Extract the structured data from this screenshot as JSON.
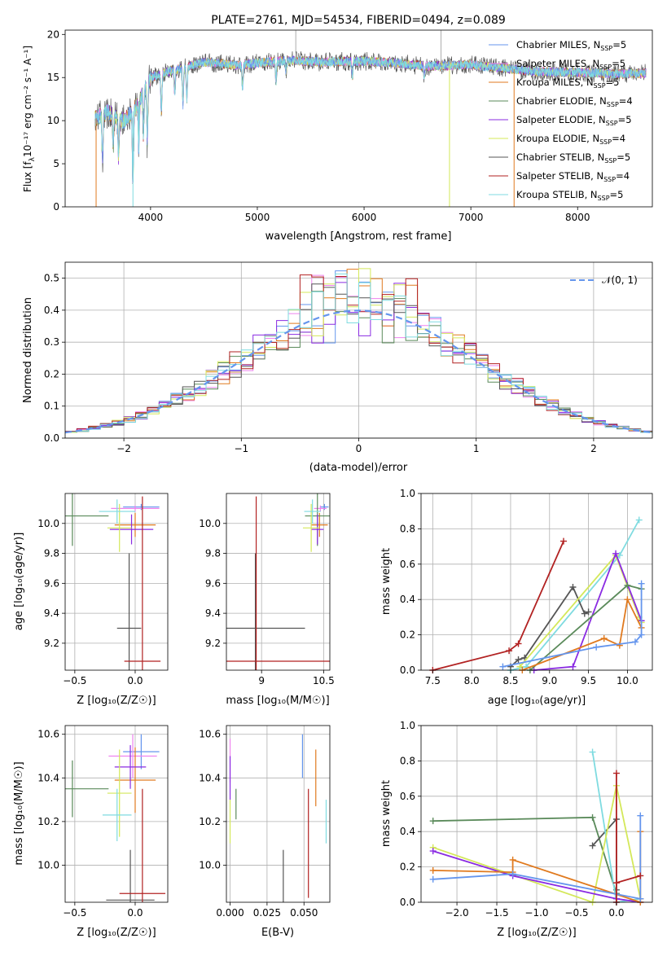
{
  "colors": {
    "chabrier_miles": "#6495ed",
    "salpeter_miles": "#ee82ee",
    "kroupa_miles": "#e07a1f",
    "chabrier_elodie": "#5a8a5a",
    "salpeter_elodie": "#8a2be2",
    "kroupa_elodie": "#d4e85a",
    "chabrier_stelib": "#555555",
    "salpeter_stelib": "#b22222",
    "kroupa_stelib": "#7fdbe0"
  },
  "chart_data": [
    {
      "id": "spectrum",
      "type": "line",
      "title": "PLATE=2761, MJD=54534, FIBERID=0494, z=0.089",
      "xlabel": "wavelength [Angstrom, rest frame]",
      "ylabel_prefix": "Flux [f",
      "ylabel_suffix": "10⁻¹⁷ erg cm⁻² s⁻¹ A⁻¹]",
      "xlim": [
        3200,
        8700
      ],
      "ylim": [
        0,
        20.5
      ],
      "xticks": [
        "4000",
        "5000",
        "6000",
        "7000",
        "8000"
      ],
      "yticks": [
        "0",
        "5",
        "10",
        "15",
        "20"
      ],
      "legend": [
        {
          "label": "Chabrier MILES, N",
          "n": "=5",
          "color_key": "chabrier_miles"
        },
        {
          "label": "Salpeter MILES, N",
          "n": "=5",
          "color_key": "salpeter_miles"
        },
        {
          "label": "Kroupa MILES, N",
          "n": "=5",
          "color_key": "kroupa_miles"
        },
        {
          "label": "Chabrier ELODIE, N",
          "n": "=4",
          "color_key": "chabrier_elodie"
        },
        {
          "label": "Salpeter ELODIE, N",
          "n": "=5",
          "color_key": "salpeter_elodie"
        },
        {
          "label": "Kroupa ELODIE, N",
          "n": "=4",
          "color_key": "kroupa_elodie"
        },
        {
          "label": "Chabrier STELIB, N",
          "n": "=5",
          "color_key": "chabrier_stelib"
        },
        {
          "label": "Salpeter STELIB, N",
          "n": "=4",
          "color_key": "salpeter_stelib"
        },
        {
          "label": "Kroupa STELIB, N",
          "n": "=5",
          "color_key": "kroupa_stelib"
        }
      ],
      "legend_subscript": "SSP",
      "continuum": [
        [
          3480,
          10.2
        ],
        [
          3600,
          11.0
        ],
        [
          3750,
          10.0
        ],
        [
          3850,
          11.3
        ],
        [
          4000,
          15.0
        ],
        [
          4200,
          15.8
        ],
        [
          4500,
          16.8
        ],
        [
          4800,
          16.4
        ],
        [
          5000,
          16.7
        ],
        [
          5300,
          17.0
        ],
        [
          5600,
          16.8
        ],
        [
          6000,
          16.9
        ],
        [
          6300,
          16.7
        ],
        [
          6600,
          16.3
        ],
        [
          7000,
          16.5
        ],
        [
          7300,
          16.1
        ],
        [
          7600,
          15.7
        ],
        [
          8000,
          15.6
        ],
        [
          8400,
          15.4
        ],
        [
          8640,
          15.5
        ]
      ],
      "features": [
        {
          "x": 3550,
          "depth": 6.5
        },
        {
          "x": 3650,
          "depth": 4.0
        },
        {
          "x": 3700,
          "depth": 5.0
        },
        {
          "x": 3835,
          "depth": 10.0
        },
        {
          "x": 3890,
          "depth": 6.0
        },
        {
          "x": 3934,
          "depth": 5.5
        },
        {
          "x": 3970,
          "depth": 8.0
        },
        {
          "x": 4101,
          "depth": 5.0
        },
        {
          "x": 4226,
          "depth": 3.0
        },
        {
          "x": 4304,
          "depth": 4.5
        },
        {
          "x": 4340,
          "depth": 4.0
        },
        {
          "x": 4861,
          "depth": 3.0
        },
        {
          "x": 5175,
          "depth": 2.5
        },
        {
          "x": 5270,
          "depth": 1.5
        },
        {
          "x": 5890,
          "depth": 2.0
        },
        {
          "x": 6563,
          "depth": 1.5
        }
      ],
      "spikes": [
        {
          "x": 3490,
          "depth": 11,
          "color_key": "kroupa_miles"
        },
        {
          "x": 3835,
          "depth": 12,
          "color_key": "kroupa_stelib"
        },
        {
          "x": 3890,
          "depth": 6,
          "color_key": "kroupa_stelib"
        },
        {
          "x": 6800,
          "depth": 17,
          "color_key": "kroupa_elodie"
        },
        {
          "x": 7405,
          "depth": 16,
          "color_key": "kroupa_miles"
        }
      ],
      "upspikes": [
        {
          "x": 5360,
          "height": 20.5
        },
        {
          "x": 6720,
          "height": 20.5
        }
      ]
    },
    {
      "id": "residuals",
      "type": "histogram",
      "xlabel": "(data-model)/error",
      "ylabel": "Normed distribution",
      "xlim": [
        -2.5,
        2.5
      ],
      "ylim": [
        0,
        0.55
      ],
      "xticks": [
        "−2",
        "−1",
        "0",
        "1",
        "2"
      ],
      "yticks": [
        "0.0",
        "0.1",
        "0.2",
        "0.3",
        "0.4",
        "0.5"
      ],
      "bin_width": 0.1,
      "legend_label": "𝒩(0, 1)",
      "gaussian_color": "#6495ed"
    },
    {
      "id": "age_vs_z",
      "type": "errorbar",
      "xlabel": "Z [log₁₀(Z/Z☉)]",
      "ylabel": "age  [log₁₀(age/yr)]",
      "xlim": [
        -0.58,
        0.27
      ],
      "ylim": [
        9.02,
        10.2
      ],
      "xticks": [
        "−0.5",
        "0.0"
      ],
      "yticks": [
        "9.2",
        "9.4",
        "9.6",
        "9.8",
        "10.0"
      ],
      "points": [
        {
          "color_key": "chabrier_miles",
          "x": 0.05,
          "xerr": 0.15,
          "y": 10.11,
          "yerr": 0.02
        },
        {
          "color_key": "salpeter_miles",
          "x": 0.0,
          "xerr": 0.2,
          "y": 10.1,
          "yerr": 0.02
        },
        {
          "color_key": "kroupa_miles",
          "x": 0.0,
          "xerr": 0.17,
          "y": 9.99,
          "yerr": 0.08
        },
        {
          "color_key": "chabrier_elodie",
          "x": -0.52,
          "xerr": 0.3,
          "y": 10.05,
          "yerr": 0.2
        },
        {
          "color_key": "salpeter_elodie",
          "x": -0.03,
          "xerr": 0.18,
          "y": 9.96,
          "yerr": 0.1
        },
        {
          "color_key": "kroupa_elodie",
          "x": -0.13,
          "xerr": 0.1,
          "y": 9.97,
          "yerr": 0.16
        },
        {
          "color_key": "chabrier_stelib",
          "x": -0.05,
          "xerr": 0.1,
          "y": 9.3,
          "yerr": 0.5
        },
        {
          "color_key": "salpeter_stelib",
          "x": 0.06,
          "xerr": 0.15,
          "y": 9.08,
          "yerr": 1.1
        },
        {
          "color_key": "kroupa_stelib",
          "x": -0.15,
          "xerr": 0.15,
          "y": 10.08,
          "yerr": 0.08
        }
      ]
    },
    {
      "id": "age_vs_mass",
      "type": "errorbar",
      "xlabel": "mass [log₁₀(M/M☉)]",
      "ylabel": "",
      "xlim": [
        8.15,
        10.65
      ],
      "ylim": [
        9.02,
        10.2
      ],
      "xticks": [
        "9",
        "10.5"
      ],
      "yticks": [
        "9.2",
        "9.4",
        "9.6",
        "9.8",
        "10.0"
      ],
      "points": [
        {
          "color_key": "chabrier_miles",
          "x": 10.52,
          "xerr": 0.1,
          "y": 10.11,
          "yerr": 0.02
        },
        {
          "color_key": "salpeter_miles",
          "x": 10.42,
          "xerr": 0.15,
          "y": 10.1,
          "yerr": 0.02
        },
        {
          "color_key": "kroupa_miles",
          "x": 10.4,
          "xerr": 0.2,
          "y": 9.99,
          "yerr": 0.08
        },
        {
          "color_key": "chabrier_elodie",
          "x": 10.35,
          "xerr": 0.3,
          "y": 10.05,
          "yerr": 0.2
        },
        {
          "color_key": "salpeter_elodie",
          "x": 10.35,
          "xerr": 0.15,
          "y": 9.96,
          "yerr": 0.1
        },
        {
          "color_key": "kroupa_elodie",
          "x": 10.2,
          "xerr": 0.2,
          "y": 9.97,
          "yerr": 0.16
        },
        {
          "color_key": "chabrier_stelib",
          "x": 8.85,
          "xerr": 1.2,
          "y": 9.3,
          "yerr": 0.5
        },
        {
          "color_key": "salpeter_stelib",
          "x": 8.87,
          "xerr": 2.5,
          "y": 9.08,
          "yerr": 1.1
        },
        {
          "color_key": "kroupa_stelib",
          "x": 10.23,
          "xerr": 0.2,
          "y": 10.08,
          "yerr": 0.08
        }
      ]
    },
    {
      "id": "weight_vs_age",
      "type": "line",
      "xlabel": "age  [log₁₀(age/yr)]",
      "ylabel": "mass weight",
      "xlim": [
        7.35,
        10.32
      ],
      "ylim": [
        0,
        1.0
      ],
      "xticks": [
        "7.5",
        "8.0",
        "8.5",
        "9.0",
        "9.5",
        "10.0"
      ],
      "yticks": [
        "0.0",
        "0.2",
        "0.4",
        "0.6",
        "0.8",
        "1.0"
      ],
      "series": [
        {
          "color_key": "kroupa_stelib",
          "x": [
            8.5,
            8.7,
            9.9,
            10.15
          ],
          "y": [
            0.0,
            0.02,
            0.65,
            0.85
          ]
        },
        {
          "color_key": "salpeter_stelib",
          "x": [
            7.5,
            8.48,
            8.6,
            9.18
          ],
          "y": [
            0.0,
            0.11,
            0.15,
            0.73
          ]
        },
        {
          "color_key": "chabrier_stelib",
          "x": [
            8.5,
            8.6,
            8.68,
            9.3,
            9.45,
            9.5
          ],
          "y": [
            0.02,
            0.06,
            0.07,
            0.47,
            0.32,
            0.33
          ]
        },
        {
          "color_key": "kroupa_elodie",
          "x": [
            8.62,
            9.85,
            10.15,
            10.18
          ],
          "y": [
            0.02,
            0.65,
            0.3,
            0.27
          ]
        },
        {
          "color_key": "salpeter_elodie",
          "x": [
            8.8,
            9.3,
            9.85,
            10.18
          ],
          "y": [
            0.0,
            0.02,
            0.66,
            0.28
          ]
        },
        {
          "color_key": "chabrier_elodie",
          "x": [
            8.75,
            10.0,
            10.18
          ],
          "y": [
            0.0,
            0.48,
            0.46
          ]
        },
        {
          "color_key": "kroupa_miles",
          "x": [
            8.65,
            9.7,
            9.9,
            10.0,
            10.18
          ],
          "y": [
            0.0,
            0.18,
            0.14,
            0.4,
            0.24
          ]
        },
        {
          "color_key": "chabrier_miles",
          "x": [
            8.4,
            9.6,
            10.1,
            10.18,
            10.18
          ],
          "y": [
            0.02,
            0.13,
            0.16,
            0.2,
            0.49
          ]
        }
      ]
    },
    {
      "id": "mass_vs_z",
      "type": "errorbar",
      "xlabel": "Z [log₁₀(Z/Z☉)]",
      "ylabel": "mass [log₁₀(M/M☉)]",
      "xlim": [
        -0.58,
        0.27
      ],
      "ylim": [
        9.83,
        10.64
      ],
      "xticks": [
        "−0.5",
        "0.0"
      ],
      "yticks": [
        "10.0",
        "10.2",
        "10.4",
        "10.6"
      ],
      "points": [
        {
          "color_key": "chabrier_miles",
          "x": 0.05,
          "xerr": 0.15,
          "y": 10.52,
          "yerr": 0.08
        },
        {
          "color_key": "salpeter_miles",
          "x": -0.02,
          "xerr": 0.2,
          "y": 10.5,
          "yerr": 0.1
        },
        {
          "color_key": "kroupa_miles",
          "x": 0.0,
          "xerr": 0.17,
          "y": 10.39,
          "yerr": 0.15
        },
        {
          "color_key": "chabrier_elodie",
          "x": -0.52,
          "xerr": 0.3,
          "y": 10.35,
          "yerr": 0.13
        },
        {
          "color_key": "salpeter_elodie",
          "x": -0.04,
          "xerr": 0.13,
          "y": 10.45,
          "yerr": 0.1
        },
        {
          "color_key": "kroupa_elodie",
          "x": -0.13,
          "xerr": 0.1,
          "y": 10.33,
          "yerr": 0.2
        },
        {
          "color_key": "chabrier_stelib",
          "x": -0.04,
          "xerr": 0.2,
          "y": 9.84,
          "yerr": 0.23
        },
        {
          "color_key": "salpeter_stelib",
          "x": 0.06,
          "xerr": 0.19,
          "y": 9.87,
          "yerr": 0.48
        },
        {
          "color_key": "kroupa_stelib",
          "x": -0.15,
          "xerr": 0.12,
          "y": 10.23,
          "yerr": 0.12
        }
      ]
    },
    {
      "id": "mass_vs_ebv",
      "type": "errorbar",
      "xlabel": "E(B-V)",
      "ylabel": "",
      "xlim": [
        -0.0025,
        0.0675
      ],
      "ylim": [
        9.83,
        10.64
      ],
      "xticks": [
        "0.000",
        "0.025",
        "0.050"
      ],
      "yticks": [
        "10.0",
        "10.2",
        "10.4",
        "10.6"
      ],
      "points": [
        {
          "color_key": "chabrier_miles",
          "x": 0.049,
          "xerr": 0,
          "y": 10.5,
          "yerr": 0.1
        },
        {
          "color_key": "salpeter_miles",
          "x": 0.0,
          "xerr": 0,
          "y": 10.48,
          "yerr": 0.1
        },
        {
          "color_key": "kroupa_miles",
          "x": 0.058,
          "xerr": 0,
          "y": 10.4,
          "yerr": 0.13
        },
        {
          "color_key": "chabrier_elodie",
          "x": 0.004,
          "xerr": 0,
          "y": 10.28,
          "yerr": 0.07
        },
        {
          "color_key": "salpeter_elodie",
          "x": 0.0,
          "xerr": 0,
          "y": 10.4,
          "yerr": 0.1
        },
        {
          "color_key": "kroupa_elodie",
          "x": 0.0,
          "xerr": 0,
          "y": 10.2,
          "yerr": 0.1
        },
        {
          "color_key": "chabrier_stelib",
          "x": 0.036,
          "xerr": 0,
          "y": 9.95,
          "yerr": 0.12
        },
        {
          "color_key": "salpeter_stelib",
          "x": 0.053,
          "xerr": 0,
          "y": 10.1,
          "yerr": 0.25
        },
        {
          "color_key": "kroupa_stelib",
          "x": 0.065,
          "xerr": 0,
          "y": 10.2,
          "yerr": 0.1
        }
      ]
    },
    {
      "id": "weight_vs_z",
      "type": "line",
      "xlabel": "Z [log₁₀(Z/Z☉)]",
      "ylabel": "mass weight",
      "xlim": [
        -2.45,
        0.45
      ],
      "ylim": [
        0,
        1.0
      ],
      "xticks": [
        "−2.0",
        "−1.5",
        "−1.0",
        "−0.5",
        "0.0"
      ],
      "yticks": [
        "0.0",
        "0.2",
        "0.4",
        "0.6",
        "0.8",
        "1.0"
      ],
      "series": [
        {
          "color_key": "chabrier_elodie",
          "x": [
            -2.3,
            -0.3,
            0.0
          ],
          "y": [
            0.46,
            0.48,
            0.05
          ]
        },
        {
          "color_key": "chabrier_stelib",
          "x": [
            -0.3,
            0.0,
            0.0
          ],
          "y": [
            0.32,
            0.47,
            0.07
          ]
        },
        {
          "color_key": "kroupa_stelib",
          "x": [
            -0.3,
            0.0,
            0.3,
            0.3
          ],
          "y": [
            0.85,
            0.0,
            0.02,
            0.02
          ]
        },
        {
          "color_key": "kroupa_elodie",
          "x": [
            -2.3,
            -0.3,
            0.0,
            0.3
          ],
          "y": [
            0.31,
            0.0,
            0.66,
            0.02
          ]
        },
        {
          "color_key": "salpeter_elodie",
          "x": [
            -2.3,
            -1.3,
            0.0,
            0.3
          ],
          "y": [
            0.29,
            0.15,
            0.02,
            0.0
          ]
        },
        {
          "color_key": "kroupa_miles",
          "x": [
            -2.3,
            -1.3,
            -1.3,
            0.3,
            0.3,
            0.3
          ],
          "y": [
            0.18,
            0.17,
            0.24,
            0.0,
            0.4,
            0.02
          ]
        },
        {
          "color_key": "chabrier_miles",
          "x": [
            -2.3,
            -1.3,
            0.3,
            0.3
          ],
          "y": [
            0.13,
            0.16,
            0.02,
            0.49
          ]
        },
        {
          "color_key": "salpeter_stelib",
          "x": [
            0.0,
            0.0,
            0.0,
            0.3
          ],
          "y": [
            0.73,
            0.0,
            0.11,
            0.15
          ]
        }
      ]
    }
  ]
}
